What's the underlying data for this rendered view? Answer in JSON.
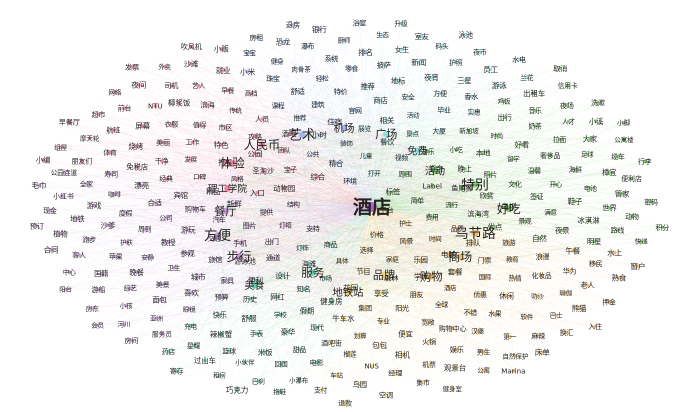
{
  "palette": {
    "purple": "#c98be0",
    "pink": "#ff6f91",
    "blue": "#8fb4ff",
    "cyan": "#7fe0e6",
    "green": "#5fd24a",
    "orange": "#ffae3a",
    "yellow": "#ffd54a",
    "teal": "#3fcfa8"
  },
  "center": {
    "label": "酒店"
  },
  "hubs": [
    "乌节路",
    "商场",
    "购物",
    "品牌",
    "地铁站",
    "服务",
    "美食",
    "步行",
    "方便",
    "餐厅",
    "理工学院",
    "体验",
    "人民币",
    "艺术",
    "机场",
    "广场",
    "免费",
    "活动",
    "特别",
    "好吃"
  ],
  "nodes": [
    "平台",
    "支持",
    "环境",
    "价格",
    "结构",
    "标签",
    "商品",
    "综合",
    "护士",
    "灯塔",
    "打开",
    "选择",
    "动物园",
    "简单",
    "灯饰",
    "精合",
    "风景",
    "提供",
    "周围",
    "具体",
    "宝子",
    "费用",
    "出门",
    "儿童",
    "家庭",
    "入口",
    "Label",
    "海滩",
    "公共",
    "时间",
    "图片",
    "视频",
    "节目",
    "圣淘沙",
    "流行",
    "通道",
    "装饰",
    "乐园",
    "新鲜",
    "资金",
    "市场",
    "团队",
    "品质",
    "手机",
    "餐饮",
    "森林",
    "风格",
    "鱼尾狮",
    "设计",
    "小时",
    "电脑",
    "汽车",
    "游乐",
    "花园",
    "公园",
    "滨海湾",
    "游泳池",
    "展览",
    "学术",
    "精品",
    "晚上",
    "知名",
    "酒吧",
    "排队",
    "交通",
    "景点",
    "享受",
    "打车",
    "欣赏",
    "便利",
    "住宿",
    "套餐",
    "购物车",
    "小吃",
    "健身房",
    "攻略",
    "优点",
    "旅馆",
    "相关",
    "朋友",
    "口碑",
    "照片",
    "网红",
    "推荐",
    "门票",
    "游玩",
    "大厦",
    "集团",
    "特色",
    "电视",
    "家具",
    "官网",
    "酒店",
    "宾馆",
    "本地",
    "假期",
    "人员",
    "旅游",
    "参观",
    "活动",
    "阳光",
    "发展",
    "文化",
    "历史",
    "建筑",
    "国际",
    "公司",
    "新加坡",
    "牛车水",
    "市区",
    "景观",
    "城市",
    "商店",
    "全球",
    "经典",
    "留学",
    "学校",
    "课程",
    "教育",
    "教授",
    "毕业",
    "专业",
    "工作",
    "签证",
    "预算",
    "特价",
    "优惠",
    "合适",
    "时尚",
    "现代",
    "传统",
    "自然",
    "卫生",
    "安全",
    "宽敞",
    "干净",
    "温馨",
    "舒服",
    "舒适",
    "热情",
    "周到",
    "实惠",
    "划算",
    "值得",
    "满意",
    "喜欢",
    "推荐",
    "不错",
    "漂亮",
    "好看",
    "豪华",
    "高档",
    "浪漫",
    "安静",
    "方便",
    "便宜",
    "美丽",
    "开心",
    "快乐",
    "轻松",
    "休闲",
    "度假",
    "出行",
    "酒吧街",
    "滨海",
    "夜景",
    "美景",
    "地标",
    "购物中心",
    "免税店",
    "奢侈品",
    "手表",
    "珠宝",
    "化妆品",
    "护肤",
    "香水",
    "包包",
    "衣服",
    "鞋子",
    "眼镜",
    "零食",
    "水果",
    "咖啡",
    "奶茶",
    "甜品",
    "早餐",
    "午餐",
    "晚餐",
    "夜宵",
    "火锅",
    "烧烤",
    "海鲜",
    "辣椒蟹",
    "肉骨茶",
    "叻沙",
    "沙爹",
    "鸡饭",
    "榴莲",
    "椰浆饭",
    "冰淇淋",
    "面包",
    "披萨",
    "汉堡",
    "寿司",
    "拉面",
    "米饭",
    "小米",
    "华为",
    "苹果",
    "三星",
    "相机",
    "屏幕",
    "电池",
    "充电",
    "系统",
    "软件",
    "游戏",
    "音乐",
    "电影",
    "艺人",
    "明星",
    "综艺",
    "新闻",
    "娱乐",
    "体育",
    "足球",
    "篮球",
    "健身",
    "瑜伽",
    "跑步",
    "游泳",
    "NUS",
    "NTU",
    "世界",
    "亚洲",
    "排名",
    "第一",
    "全家",
    "人才",
    "回国",
    "就业",
    "移民",
    "国籍",
    "护照",
    "机票",
    "航班",
    "樟宜",
    "星耀",
    "瀑布",
    "巴士",
    "地铁",
    "出租车",
    "车站",
    "司机",
    "路线",
    "小孩",
    "女生",
    "男生",
    "朋友们",
    "大家",
    "小伙伴",
    "宝宝",
    "老人",
    "客人",
    "员工",
    "经理",
    "前台",
    "管家",
    "服务员",
    "厨师",
    "麻辣",
    "小红书",
    "夜场",
    "小瀑布",
    "沙滩",
    "水上",
    "游船",
    "码头",
    "观景台",
    "摩天轮",
    "缆车",
    "过山车",
    "恐龙",
    "熊猫",
    "植物",
    "兰花",
    "鸟园",
    "夜间",
    "动物",
    "河川",
    "生态",
    "自然保护",
    "公园连道",
    "小溪",
    "巴刹",
    "小贩",
    "熟食",
    "中心",
    "夜市",
    "集市",
    "超市",
    "便利店",
    "药店",
    "银行",
    "换汇",
    "现金",
    "信用卡",
    "支付",
    "外卖",
    "快递",
    "房东",
    "室友",
    "公寓",
    "组屋",
    "公寓楼",
    "租房",
    "房租",
    "押金",
    "合同",
    "水电",
    "空调",
    "网络",
    "密码",
    "房间",
    "浴室",
    "床单",
    "毛巾",
    "洗漱",
    "拖鞋",
    "吹风机",
    "窗户",
    "阳台",
    "泳池",
    "健身室",
    "早餐厅",
    "行李",
    "寄存",
    "退房",
    "入住",
    "预订",
    "取消",
    "退款",
    "发票",
    "积分",
    "会员",
    "升级",
    "Marina",
    "小编",
    "小脚",
    "巧克力"
  ]
}
